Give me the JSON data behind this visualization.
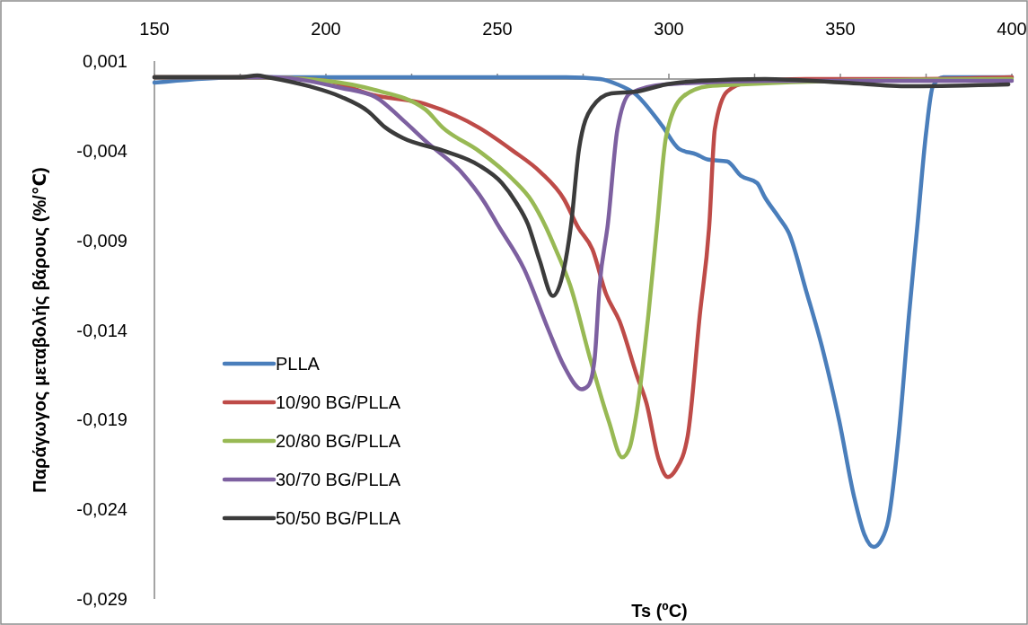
{
  "chart_data": {
    "type": "line",
    "xlabel": "Ts (ºC)",
    "ylabel": "Παράγωγος μεταβολής βάρους (%/℃)",
    "xlim": [
      150,
      400
    ],
    "ylim": [
      -0.029,
      0.001
    ],
    "xticks": [
      150,
      {
        "value": 175,
        "label": null
      },
      200,
      {
        "value": 225,
        "label": null
      },
      250,
      {
        "value": 275,
        "label": null
      },
      300,
      {
        "value": 325,
        "label": null
      },
      350,
      {
        "value": 375,
        "label": null
      },
      400
    ],
    "yticks": [
      {
        "value": 0.001,
        "label": "0,001"
      },
      {
        "value": -0.004,
        "label": "-0,004"
      },
      {
        "value": -0.009,
        "label": "-0,009"
      },
      {
        "value": -0.014,
        "label": "-0,014"
      },
      {
        "value": -0.019,
        "label": "-0,019"
      },
      {
        "value": -0.024,
        "label": "-0,024"
      },
      {
        "value": -0.029,
        "label": "-0,029"
      }
    ],
    "legend": "bottom left",
    "line_style": "solid",
    "marker": "none",
    "series": [
      {
        "name": "PLLA",
        "color": "#4a7ebb",
        "x": [
          150,
          175,
          200,
          250,
          270,
          280,
          285,
          290,
          298,
          303,
          308,
          311.5,
          317,
          321,
          325.7,
          328,
          332,
          335,
          340,
          345,
          349.7,
          354,
          357,
          359.7,
          362,
          364,
          367,
          370,
          372.5,
          375,
          377,
          380,
          390,
          400
        ],
        "values": [
          -0.0002,
          0.0001,
          0.0001,
          0.0001,
          0.0001,
          0.0,
          -0.0003,
          -0.0008,
          -0.0026,
          -0.0039,
          -0.0042,
          -0.0045,
          -0.0046,
          -0.0054,
          -0.0058,
          -0.0066,
          -0.0077,
          -0.0086,
          -0.0118,
          -0.0152,
          -0.0191,
          -0.0233,
          -0.0254,
          -0.0261,
          -0.0257,
          -0.0246,
          -0.0199,
          -0.0132,
          -0.0081,
          -0.003,
          -0.0004,
          0.0001,
          0.0001,
          0.0001
        ]
      },
      {
        "name": "10/90 BG/PLLA",
        "color": "#be4b48",
        "x": [
          150,
          180,
          200,
          214,
          229,
          244.5,
          254.5,
          262.6,
          269.4,
          273.6,
          277.7,
          281.7,
          285.6,
          290.6,
          293.5,
          297,
          299.7,
          302,
          305.5,
          309,
          311.8,
          313.4,
          317,
          322.8,
          340,
          370,
          400
        ],
        "values": [
          0.0001,
          0.0001,
          -0.0001,
          -0.0009,
          -0.0014,
          -0.0027,
          -0.004,
          -0.0052,
          -0.0067,
          -0.0083,
          -0.0095,
          -0.012,
          -0.0135,
          -0.0165,
          -0.0181,
          -0.0212,
          -0.0222,
          -0.0218,
          -0.0199,
          -0.0132,
          -0.0081,
          -0.0028,
          -0.0007,
          -0.0002,
          0.0,
          0.0,
          0.0001
        ]
      },
      {
        "name": "20/80 BG/PLLA",
        "color": "#98b954",
        "x": [
          150,
          180,
          200,
          214,
          229,
          234,
          244.5,
          254.5,
          260,
          264,
          267,
          271.2,
          277.2,
          282.5,
          286.4,
          288.5,
          290.6,
          294,
          296.6,
          299.2,
          304,
          311.5,
          321,
          350,
          400
        ],
        "values": [
          0.0001,
          0.0001,
          -0.0001,
          -0.0006,
          -0.0017,
          -0.0027,
          -0.004,
          -0.0056,
          -0.0068,
          -0.0082,
          -0.0095,
          -0.0115,
          -0.0157,
          -0.0191,
          -0.0211,
          -0.0206,
          -0.0186,
          -0.0132,
          -0.0081,
          -0.0032,
          -0.001,
          -0.0004,
          -0.0003,
          -0.0001,
          0.0
        ]
      },
      {
        "name": "30/70 BG/PLLA",
        "color": "#7d60a0",
        "x": [
          150,
          184,
          204.5,
          214.4,
          222.5,
          229.3,
          239.5,
          246.3,
          250,
          257.8,
          264.9,
          269.4,
          274.6,
          276.5,
          278.3,
          279.8,
          282.2,
          285,
          288.7,
          299,
          330,
          400
        ],
        "values": [
          0.0001,
          0.0001,
          -0.0005,
          -0.001,
          -0.0023,
          -0.0035,
          -0.0052,
          -0.0069,
          -0.0081,
          -0.0106,
          -0.014,
          -0.016,
          -0.0173,
          -0.0171,
          -0.0157,
          -0.0115,
          -0.0081,
          -0.0028,
          -0.0008,
          -0.0003,
          -0.0001,
          -0.0001
        ]
      },
      {
        "name": "50/50 BG/PLLA",
        "color": "#3b3b3b",
        "x": [
          150,
          175,
          180,
          183,
          195,
          204.5,
          212.3,
          217.3,
          222.5,
          234.3,
          244.5,
          251.3,
          255.5,
          258.9,
          262.3,
          266.2,
          269.4,
          271.5,
          273.8,
          277.5,
          283.2,
          290.6,
          299.2,
          309.4,
          328,
          351,
          370,
          399
        ],
        "values": [
          0.0001,
          0.0001,
          0.0002,
          0.0001,
          -0.0004,
          -0.001,
          -0.0018,
          -0.0027,
          -0.0033,
          -0.004,
          -0.0048,
          -0.0058,
          -0.0069,
          -0.0081,
          -0.0101,
          -0.0121,
          -0.0106,
          -0.0081,
          -0.0039,
          -0.0016,
          -0.0008,
          -0.0007,
          -0.0003,
          -0.0001,
          0.0,
          -0.0002,
          -0.0004,
          -0.0003
        ]
      }
    ]
  }
}
